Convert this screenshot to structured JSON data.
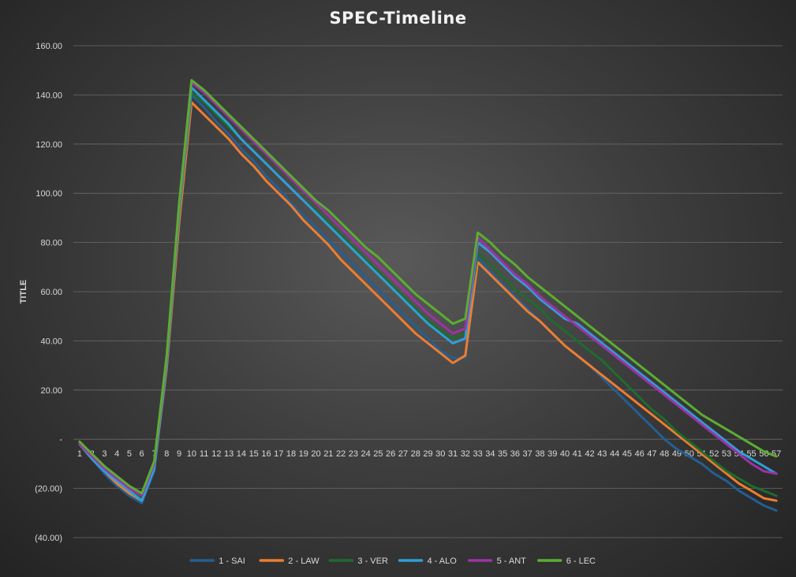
{
  "chart_data": {
    "type": "line",
    "title": "SPEC-Timeline",
    "ylabel": "TITLE",
    "xlabel": "",
    "ylim": [
      -40,
      160
    ],
    "y_ticks": [
      {
        "value": 160,
        "label": "160.00"
      },
      {
        "value": 140,
        "label": "140.00"
      },
      {
        "value": 120,
        "label": "120.00"
      },
      {
        "value": 100,
        "label": "100.00"
      },
      {
        "value": 80,
        "label": "80.00"
      },
      {
        "value": 60,
        "label": "60.00"
      },
      {
        "value": 40,
        "label": "40.00"
      },
      {
        "value": 20,
        "label": "20.00"
      },
      {
        "value": 0,
        "label": "-"
      },
      {
        "value": -20,
        "label": "(20.00)"
      },
      {
        "value": -40,
        "label": "(40.00)"
      }
    ],
    "grid": true,
    "legend_position": "bottom",
    "x": [
      1,
      2,
      3,
      4,
      5,
      6,
      7,
      8,
      9,
      10,
      11,
      12,
      13,
      14,
      15,
      16,
      17,
      18,
      19,
      20,
      21,
      22,
      23,
      24,
      25,
      26,
      27,
      28,
      29,
      30,
      31,
      32,
      33,
      34,
      35,
      36,
      37,
      38,
      39,
      40,
      41,
      42,
      43,
      44,
      45,
      46,
      47,
      48,
      49,
      50,
      51,
      52,
      53,
      54,
      55,
      56,
      57
    ],
    "series": [
      {
        "name": "1 - SAI",
        "color": "#255e91",
        "values": [
          -2,
          -8,
          -14,
          -19,
          -23,
          -26,
          -13,
          30,
          90,
          140,
          135,
          129,
          124,
          118,
          113,
          107,
          102,
          96,
          91,
          86,
          81,
          76,
          71,
          66,
          61,
          56,
          51,
          46,
          41,
          36,
          33,
          33,
          74,
          68,
          63,
          58,
          53,
          48,
          43,
          38,
          34,
          30,
          25,
          20,
          15,
          10,
          5,
          0,
          -4,
          -7,
          -10,
          -14,
          -17,
          -21,
          -24,
          -27,
          -29
        ]
      },
      {
        "name": "2 - LAW",
        "color": "#ed7d31",
        "values": [
          -2,
          -8,
          -13,
          -18,
          -22,
          -25,
          -12,
          29,
          88,
          137,
          132,
          127,
          122,
          116,
          111,
          105,
          100,
          95,
          89,
          84,
          79,
          73,
          68,
          63,
          58,
          53,
          48,
          43,
          39,
          35,
          31,
          34,
          72,
          67,
          62,
          57,
          52,
          48,
          43,
          38,
          34,
          30,
          26,
          22,
          18,
          14,
          10,
          6,
          2,
          -2,
          -6,
          -10,
          -14,
          -18,
          -21,
          -24,
          -25
        ]
      },
      {
        "name": "3 - VER",
        "color": "#1f6b2e",
        "values": [
          -2,
          -7,
          -12,
          -16,
          -20,
          -24,
          -11,
          31,
          92,
          141,
          137,
          132,
          127,
          122,
          117,
          112,
          107,
          102,
          97,
          93,
          88,
          83,
          78,
          73,
          68,
          63,
          58,
          53,
          48,
          44,
          41,
          43,
          76,
          71,
          66,
          61,
          57,
          53,
          48,
          44,
          40,
          36,
          32,
          27,
          22,
          17,
          12,
          8,
          3,
          -1,
          -5,
          -9,
          -13,
          -16,
          -19,
          -21,
          -23
        ]
      },
      {
        "name": "4 - ALO",
        "color": "#2e9fd8",
        "values": [
          -2,
          -8,
          -13,
          -17,
          -21,
          -25,
          -12,
          31,
          93,
          143,
          138,
          133,
          128,
          122,
          117,
          112,
          107,
          102,
          97,
          92,
          87,
          82,
          77,
          72,
          67,
          62,
          57,
          52,
          47,
          43,
          39,
          41,
          80,
          76,
          71,
          66,
          62,
          57,
          53,
          49,
          47,
          43,
          39,
          35,
          31,
          27,
          23,
          19,
          15,
          11,
          7,
          3,
          -1,
          -5,
          -8,
          -11,
          -14
        ]
      },
      {
        "name": "5 - ANT",
        "color": "#9b34a3",
        "values": [
          -2,
          -7,
          -12,
          -16,
          -20,
          -23,
          -10,
          33,
          95,
          145,
          141,
          136,
          131,
          126,
          121,
          116,
          111,
          106,
          101,
          96,
          91,
          86,
          81,
          76,
          71,
          66,
          61,
          56,
          51,
          47,
          43,
          45,
          82,
          77,
          72,
          67,
          63,
          58,
          54,
          50,
          46,
          42,
          38,
          34,
          30,
          26,
          22,
          18,
          14,
          10,
          6,
          2,
          -2,
          -6,
          -10,
          -13,
          -14
        ]
      },
      {
        "name": "6 - LEC",
        "color": "#5cad32",
        "values": [
          -1,
          -6,
          -11,
          -15,
          -19,
          -22,
          -9,
          34,
          96,
          146,
          142,
          137,
          132,
          127,
          122,
          117,
          112,
          107,
          102,
          97,
          93,
          88,
          83,
          78,
          74,
          69,
          64,
          59,
          55,
          51,
          47,
          49,
          84,
          80,
          75,
          71,
          66,
          62,
          58,
          54,
          50,
          46,
          42,
          38,
          34,
          30,
          26,
          22,
          18,
          14,
          10,
          7,
          4,
          1,
          -2,
          -5,
          -7
        ]
      }
    ]
  }
}
